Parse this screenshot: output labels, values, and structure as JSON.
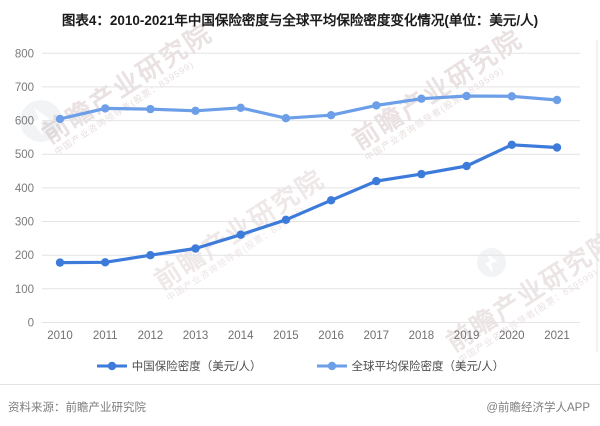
{
  "title": "图表4：2010-2021年中国保险密度与全球平均保险密度变化情况(单位：美元/人)",
  "chart_data": {
    "type": "line",
    "categories": [
      "2010",
      "2011",
      "2012",
      "2013",
      "2014",
      "2015",
      "2016",
      "2017",
      "2018",
      "2019",
      "2020",
      "2021"
    ],
    "series": [
      {
        "name": "中国保险密度（美元/人）",
        "color": "#3d7bdb",
        "values": [
          178,
          179,
          200,
          220,
          261,
          305,
          363,
          420,
          441,
          465,
          528,
          520
        ]
      },
      {
        "name": "全球平均保险密度（美元/人）",
        "color": "#6d9fe8",
        "values": [
          605,
          636,
          634,
          629,
          638,
          607,
          616,
          645,
          665,
          673,
          672,
          661
        ]
      }
    ],
    "title": "2010-2021年中国保险密度与全球平均保险密度变化情况",
    "unit": "美元/人",
    "xlabel": "",
    "ylabel": "",
    "ylim": [
      0,
      800
    ],
    "ytick_step": 100,
    "grid": "horizontal",
    "legend_position": "bottom"
  },
  "footer": {
    "source": "资料来源：前瞻产业研究院",
    "credit": "@前瞻经济学人APP"
  },
  "watermark": {
    "text": "前瞻产业研究院",
    "subtext": "中国产业咨询领导者(股票：839599)",
    "logo": "qianzhan-swoosh-logo"
  }
}
